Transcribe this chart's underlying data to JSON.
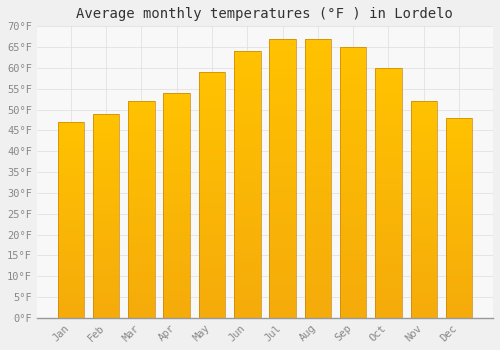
{
  "title": "Average monthly temperatures (°F ) in Lordelo",
  "months": [
    "Jan",
    "Feb",
    "Mar",
    "Apr",
    "May",
    "Jun",
    "Jul",
    "Aug",
    "Sep",
    "Oct",
    "Nov",
    "Dec"
  ],
  "values": [
    47,
    49,
    52,
    54,
    59,
    64,
    67,
    67,
    65,
    60,
    52,
    48
  ],
  "bar_color_top": "#FFC200",
  "bar_color_bottom": "#F5A800",
  "bar_edge_color": "#C8850A",
  "background_color": "#F0F0F0",
  "plot_bg_color": "#F8F8F8",
  "grid_color": "#DDDDDD",
  "ylim": [
    0,
    70
  ],
  "yticks": [
    0,
    5,
    10,
    15,
    20,
    25,
    30,
    35,
    40,
    45,
    50,
    55,
    60,
    65,
    70
  ],
  "title_fontsize": 10,
  "tick_fontsize": 7.5,
  "tick_color": "#888888",
  "ylabel_suffix": "°F",
  "bar_width": 0.75
}
